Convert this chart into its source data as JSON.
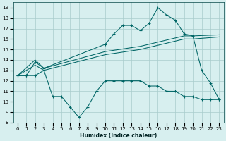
{
  "xlabel": "Humidex (Indice chaleur)",
  "bg_color": "#d7efef",
  "grid_color": "#a8cccc",
  "line_color": "#006666",
  "xlim": [
    -0.5,
    23.5
  ],
  "ylim": [
    8,
    19.5
  ],
  "xticks": [
    0,
    1,
    2,
    3,
    4,
    5,
    6,
    7,
    8,
    9,
    10,
    11,
    12,
    13,
    14,
    15,
    16,
    17,
    18,
    19,
    20,
    21,
    22,
    23
  ],
  "yticks": [
    8,
    9,
    10,
    11,
    12,
    13,
    14,
    15,
    16,
    17,
    18,
    19
  ],
  "series_peak": {
    "x": [
      0,
      1,
      2,
      3,
      10,
      11,
      12,
      13,
      14,
      15,
      16,
      17,
      18,
      19,
      20,
      21,
      22,
      23
    ],
    "y": [
      12.5,
      12.5,
      13.8,
      13.2,
      15.5,
      16.5,
      17.3,
      17.3,
      16.8,
      17.5,
      19.0,
      18.3,
      17.8,
      16.5,
      16.3,
      13.0,
      11.8,
      10.2
    ]
  },
  "series_dip": {
    "x": [
      0,
      1,
      2,
      3,
      4,
      5,
      6,
      7,
      8,
      9,
      10,
      11,
      12,
      13,
      14,
      15,
      16,
      17,
      18,
      19,
      20,
      21,
      22,
      23
    ],
    "y": [
      12.5,
      12.5,
      12.5,
      13.0,
      10.5,
      10.5,
      9.5,
      8.5,
      9.5,
      11.0,
      12.0,
      12.0,
      12.0,
      12.0,
      12.0,
      11.5,
      11.5,
      11.0,
      11.0,
      10.5,
      10.5,
      10.2,
      10.2,
      10.2
    ]
  },
  "series_line1": {
    "x": [
      0,
      2,
      3,
      10,
      14,
      19,
      20,
      23
    ],
    "y": [
      12.5,
      14.0,
      13.2,
      14.8,
      15.3,
      16.3,
      16.3,
      16.4
    ]
  },
  "series_line2": {
    "x": [
      0,
      2,
      3,
      10,
      14,
      19,
      20,
      23
    ],
    "y": [
      12.5,
      13.5,
      13.0,
      14.5,
      15.0,
      16.0,
      16.0,
      16.2
    ]
  }
}
